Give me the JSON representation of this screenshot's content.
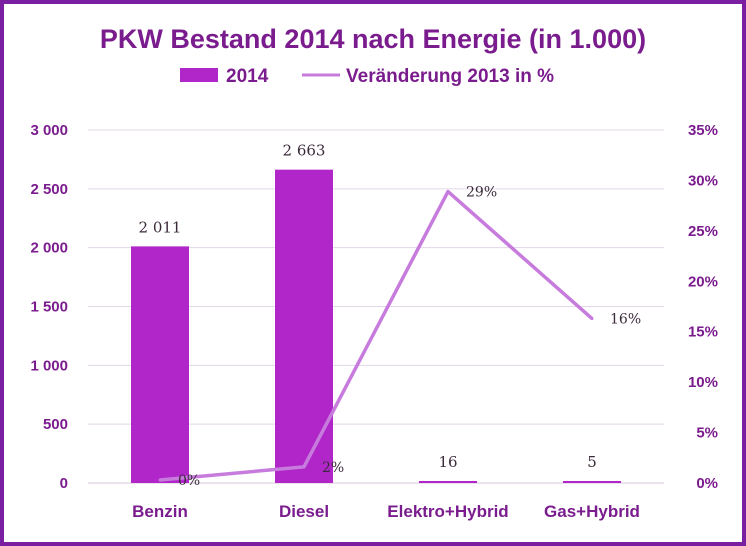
{
  "chart_data": {
    "type": "bar",
    "title": "PKW Bestand 2014 nach Energie (in 1.000)",
    "categories": [
      "Benzin",
      "Diesel",
      "Elektro+Hybrid",
      "Gas+Hybrid"
    ],
    "series": [
      {
        "name": "2014",
        "type": "bar",
        "axis": "left",
        "values": [
          2011,
          2663,
          16,
          5
        ],
        "labels": [
          "2 011",
          "2 663",
          "16",
          "5"
        ],
        "color": "#B026C8"
      },
      {
        "name": "Veränderung 2013 in %",
        "type": "line",
        "axis": "right",
        "values": [
          0.3,
          1.6,
          28.9,
          16.3
        ],
        "labels": [
          "0%",
          "2%",
          "29%",
          "16%"
        ],
        "color": "#C77BDD"
      }
    ],
    "y_left": {
      "min": 0,
      "max": 3000,
      "step": 500,
      "tick_labels": [
        "0",
        "500",
        "1 000",
        "1 500",
        "2 000",
        "2 500",
        "3 000"
      ]
    },
    "y_right": {
      "min": 0,
      "max": 35,
      "step": 5,
      "tick_labels": [
        "0%",
        "5%",
        "10%",
        "15%",
        "20%",
        "25%",
        "30%",
        "35%"
      ]
    },
    "legend_position": "top",
    "grid": true,
    "colors": {
      "text": "#7B1C8E",
      "border": "#7B1FA2",
      "grid": "#E3D7E6"
    }
  }
}
